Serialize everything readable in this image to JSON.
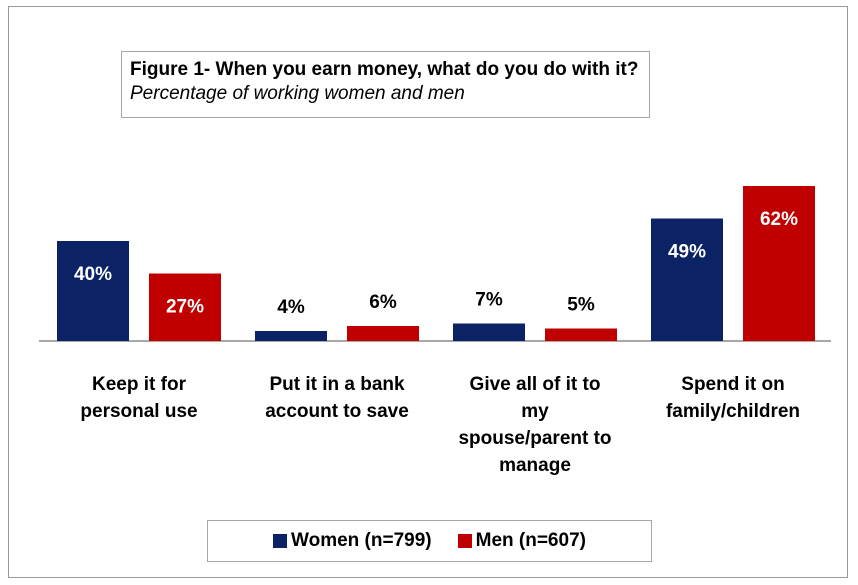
{
  "chart_data": {
    "type": "bar",
    "title": "Figure 1- When you earn money, what do you do with it?",
    "subtitle": "Percentage of working women and men",
    "categories": [
      [
        "Keep it for",
        "personal use"
      ],
      [
        "Put it in a bank",
        "account to save"
      ],
      [
        "Give all of it to",
        "my",
        "spouse/parent to",
        "manage"
      ],
      [
        "Spend it on",
        "family/children"
      ]
    ],
    "series": [
      {
        "name": "Women (n=799)",
        "color": "#0b2265",
        "values": [
          40,
          4,
          7,
          49
        ],
        "labels": [
          "40%",
          "4%",
          "7%",
          "49%"
        ]
      },
      {
        "name": "Men (n=607)",
        "color": "#c00000",
        "values": [
          27,
          6,
          5,
          62
        ],
        "labels": [
          "27%",
          "6%",
          "5%",
          "62%"
        ]
      }
    ],
    "ylim": [
      0,
      70
    ],
    "grid": false,
    "legend_position": "bottom"
  }
}
